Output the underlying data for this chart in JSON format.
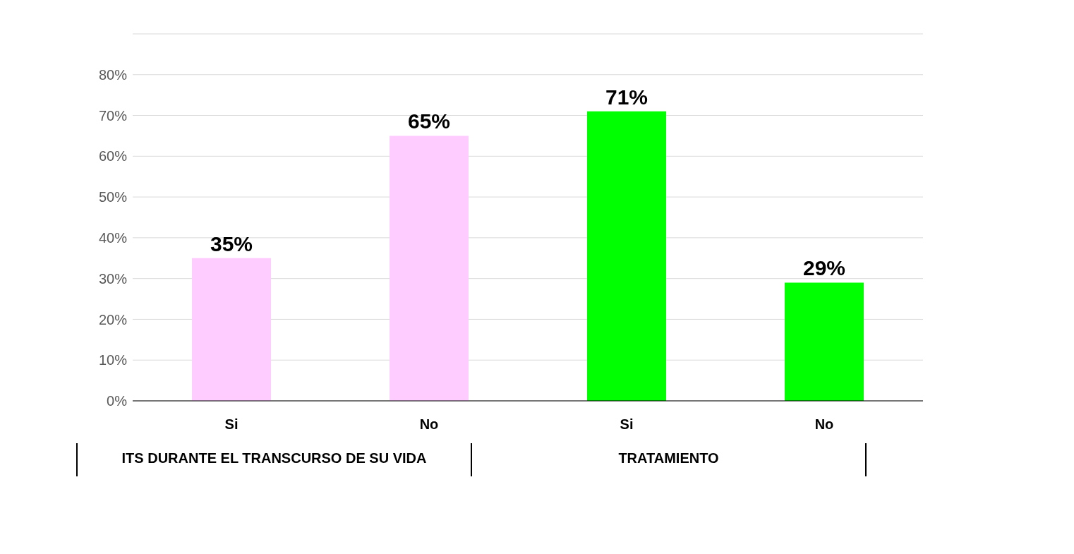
{
  "chart_data": {
    "type": "bar",
    "categories": [
      "Si",
      "No",
      "Si",
      "No"
    ],
    "values": [
      35,
      65,
      71,
      29
    ],
    "colors": [
      "#ffccff",
      "#ffccff",
      "#00ff00",
      "#00ff00"
    ],
    "value_labels": [
      "35%",
      "65%",
      "71%",
      "29%"
    ],
    "ylim": [
      0,
      90
    ],
    "yticks": [
      {
        "value": 0,
        "label": "0%"
      },
      {
        "value": 10,
        "label": "10%"
      },
      {
        "value": 20,
        "label": "20%"
      },
      {
        "value": 30,
        "label": "30%"
      },
      {
        "value": 40,
        "label": "40%"
      },
      {
        "value": 50,
        "label": "50%"
      },
      {
        "value": 60,
        "label": "60%"
      },
      {
        "value": 70,
        "label": "70%"
      },
      {
        "value": 80,
        "label": "80%"
      },
      {
        "value": 90,
        "label": null
      }
    ],
    "grid": "y",
    "annotations": [
      "ITS DURANTE EL TRANSCURSO DE SU VIDA",
      "TRATAMIENTO"
    ]
  }
}
